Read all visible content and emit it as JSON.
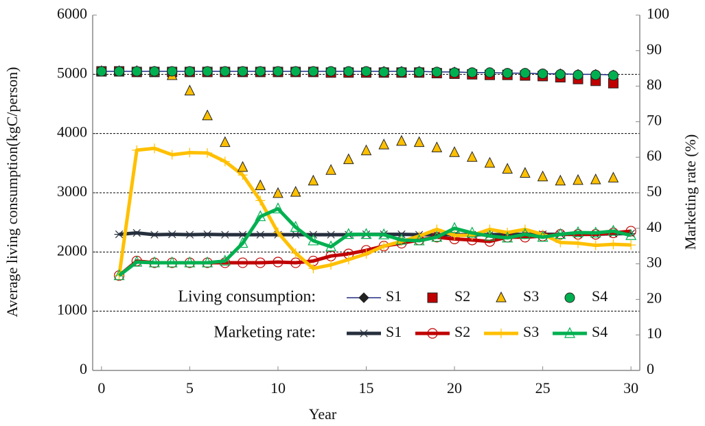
{
  "chart_data": {
    "type": "line",
    "x_label": "Year",
    "y_label": "Average living consumption(kgC/person)",
    "y2_label": "Marketing rate (%)",
    "xlim": [
      -0.5,
      30.5
    ],
    "xticks": [
      0,
      5,
      10,
      15,
      20,
      25,
      30
    ],
    "ylim": [
      0,
      6000
    ],
    "yticks": [
      0,
      1000,
      2000,
      3000,
      4000,
      5000,
      6000
    ],
    "y2lim": [
      0,
      100
    ],
    "y2ticks": [
      0,
      10,
      20,
      30,
      40,
      50,
      60,
      70,
      80,
      90,
      100
    ],
    "grid": true,
    "groups": [
      {
        "label": "Living consumption:",
        "axis": "y",
        "x": [
          0,
          1,
          2,
          3,
          4,
          5,
          6,
          7,
          8,
          9,
          10,
          11,
          12,
          13,
          14,
          15,
          16,
          17,
          18,
          19,
          20,
          21,
          22,
          23,
          24,
          25,
          26,
          27,
          28,
          29
        ],
        "series": [
          {
            "name": "S1",
            "color": "#1f2a80",
            "marker": "diamond",
            "marker_fill": "#222222",
            "line": true,
            "values": [
              5050,
              5050,
              5050,
              5050,
              5050,
              5050,
              5050,
              5050,
              5050,
              5050,
              5050,
              5050,
              5050,
              5050,
              5050,
              5050,
              5050,
              5050,
              5050,
              5040,
              5040,
              5030,
              5030,
              5020,
              5020,
              5010,
              5010,
              5000,
              5000,
              4990
            ]
          },
          {
            "name": "S2",
            "color": "#c00000",
            "marker": "square",
            "marker_fill": "#c00000",
            "line": false,
            "values": [
              5050,
              5050,
              5040,
              5040,
              5040,
              5040,
              5040,
              5040,
              5040,
              5040,
              5040,
              5040,
              5040,
              5030,
              5030,
              5030,
              5030,
              5030,
              5030,
              5020,
              5010,
              5000,
              4990,
              4990,
              4980,
              4970,
              4950,
              4920,
              4890,
              4850
            ]
          },
          {
            "name": "S3",
            "color": "#7a5a00",
            "marker": "triangle",
            "marker_fill": "#ffc000",
            "line": false,
            "values": [
              5050,
              5050,
              5050,
              5040,
              4980,
              4720,
              4300,
              3850,
              3430,
              3120,
              2990,
              3010,
              3200,
              3380,
              3560,
              3710,
              3810,
              3870,
              3850,
              3760,
              3680,
              3600,
              3500,
              3400,
              3330,
              3270,
              3200,
              3210,
              3220,
              3250
            ]
          },
          {
            "name": "S4",
            "color": "#0a5a2a",
            "marker": "circle",
            "marker_fill": "#00b050",
            "line": false,
            "values": [
              5050,
              5050,
              5050,
              5050,
              5050,
              5050,
              5050,
              5050,
              5050,
              5050,
              5050,
              5050,
              5050,
              5050,
              5050,
              5050,
              5040,
              5040,
              5040,
              5040,
              5030,
              5030,
              5030,
              5020,
              5020,
              5010,
              5000,
              4990,
              4990,
              4980
            ]
          }
        ]
      },
      {
        "label": "Marketing rate:",
        "axis": "y2",
        "x": [
          1,
          2,
          3,
          4,
          5,
          6,
          7,
          8,
          9,
          10,
          11,
          12,
          13,
          14,
          15,
          16,
          17,
          18,
          19,
          20,
          21,
          22,
          23,
          24,
          25,
          26,
          27,
          28,
          29,
          30
        ],
        "series": [
          {
            "name": "S1",
            "color": "#262f3d",
            "marker": "asterisk",
            "marker_fill": "none",
            "line": true,
            "values": [
              38.3,
              38.7,
              38.2,
              38.3,
              38.2,
              38.3,
              38.2,
              38.2,
              38.2,
              38.2,
              38.2,
              38.2,
              38.2,
              38.2,
              38.3,
              38.3,
              38.3,
              38.2,
              38.2,
              38.2,
              38.2,
              38.2,
              38.3,
              38.3,
              38.3,
              38.3,
              38.3,
              38.3,
              38.5,
              38.5
            ]
          },
          {
            "name": "S2",
            "color": "#c00000",
            "marker": "circle",
            "marker_fill": "none",
            "line": true,
            "values": [
              26.7,
              30.8,
              30.3,
              30.3,
              30.3,
              30.3,
              30.3,
              30.3,
              30.3,
              30.5,
              30.3,
              30.8,
              32.2,
              32.8,
              33.8,
              35,
              35.8,
              36.7,
              37.5,
              37,
              36.7,
              36.3,
              37.5,
              37.5,
              37.8,
              38.3,
              38.3,
              38.3,
              38.7,
              39.2
            ]
          },
          {
            "name": "S3",
            "color": "#ffc000",
            "marker": "plus",
            "marker_fill": "none",
            "line": true,
            "values": [
              26.7,
              62,
              62.5,
              60.7,
              61.3,
              61.2,
              58.8,
              55,
              47.8,
              38.8,
              33,
              28.7,
              29.7,
              31.2,
              32.8,
              35,
              36.3,
              37.8,
              39.7,
              38,
              38,
              39.7,
              38.8,
              39.7,
              38.3,
              36,
              35.8,
              35.2,
              35.5,
              35.3
            ]
          },
          {
            "name": "S4",
            "color": "#00b050",
            "marker": "triangle",
            "marker_fill": "none",
            "line": true,
            "values": [
              26.7,
              30.5,
              30.3,
              30.3,
              30.3,
              30.3,
              30.8,
              35.8,
              43.3,
              45.5,
              40.3,
              36.5,
              34.8,
              38.3,
              38.3,
              38.2,
              36.7,
              36.5,
              37.5,
              40,
              38.7,
              37.8,
              37.3,
              38.3,
              37.5,
              38.3,
              38.8,
              38.7,
              39.2,
              38
            ]
          }
        ]
      }
    ]
  }
}
